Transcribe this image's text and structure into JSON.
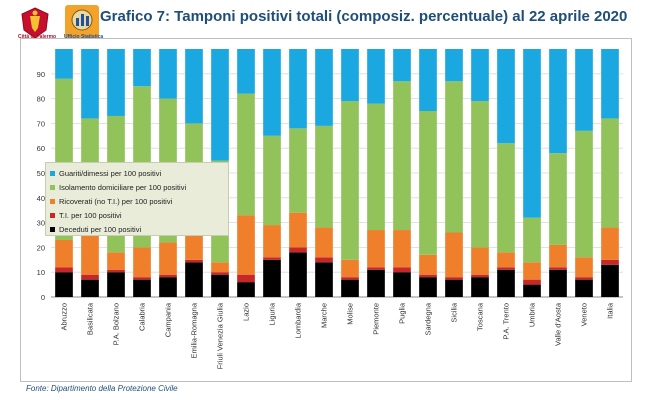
{
  "header": {
    "title": "Grafico 7: Tamponi positivi totali (composiz. percentuale) al 22 aprile 2020",
    "logo1_caption": "Città di Palermo",
    "logo2_caption": "Ufficio Statistica"
  },
  "footer": {
    "source": "Fonte: Dipartimento della Protezione Civile"
  },
  "colors": {
    "guariti": "#1ba8e0",
    "isolamento": "#92c35a",
    "ricoverati": "#f07f2c",
    "ti": "#c62828",
    "deceduti": "#000000",
    "grid": "#d9d9d9",
    "axis_text": "#333333"
  },
  "chart_data": {
    "type": "bar",
    "stacked": true,
    "title": "Grafico 7: Tamponi positivi totali (composiz. percentuale) al 22 aprile 2020",
    "xlabel": "",
    "ylabel": "",
    "ylim": [
      0,
      100
    ],
    "yticks": [
      0,
      10,
      20,
      30,
      40,
      50,
      60,
      70,
      80,
      90
    ],
    "grid": true,
    "legend_position": "left-middle",
    "categories": [
      "Abruzzo",
      "Basilicata",
      "P.A. Bolzano",
      "Calabria",
      "Campania",
      "Emilia-Romagna",
      "Friuli Venezia Giulia",
      "Lazio",
      "Liguria",
      "Lombardia",
      "Marche",
      "Molise",
      "Piemonte",
      "Puglia",
      "Sardegna",
      "Sicilia",
      "Toscana",
      "P.A. Trento",
      "Umbria",
      "Valle d'Aosta",
      "Veneto",
      "Italia"
    ],
    "series": [
      {
        "name": "Deceduti per 100 positivi",
        "color_key": "deceduti",
        "values": [
          10,
          7,
          10,
          7,
          8,
          14,
          9,
          6,
          15,
          18,
          14,
          7,
          11,
          10,
          8,
          7,
          8,
          11,
          5,
          11,
          7,
          13
        ]
      },
      {
        "name": "T.I. per 100 positivi",
        "color_key": "ti",
        "values": [
          2,
          2,
          1,
          1,
          1,
          1,
          1,
          3,
          1,
          2,
          2,
          1,
          1,
          2,
          1,
          1,
          1,
          1,
          2,
          1,
          1,
          2
        ]
      },
      {
        "name": "Ricoverati (no T.I.) per 100 positivi",
        "color_key": "ricoverati",
        "values": [
          11,
          18,
          7,
          12,
          13,
          13,
          4,
          24,
          13,
          14,
          12,
          7,
          15,
          15,
          8,
          18,
          11,
          6,
          7,
          9,
          8,
          13
        ]
      },
      {
        "name": "Isolamento domiciliare per 100 positivi",
        "color_key": "isolamento",
        "values": [
          65,
          45,
          55,
          65,
          58,
          42,
          41,
          49,
          36,
          34,
          41,
          64,
          51,
          60,
          58,
          61,
          59,
          44,
          18,
          37,
          51,
          44
        ]
      },
      {
        "name": "Guariti/dimessi per 100 positivi",
        "color_key": "guariti",
        "values": [
          12,
          28,
          27,
          15,
          20,
          30,
          45,
          18,
          35,
          32,
          31,
          21,
          22,
          13,
          25,
          13,
          21,
          38,
          68,
          42,
          33,
          28
        ]
      }
    ],
    "legend_order": [
      "Guariti/dimessi per 100 positivi",
      "Isolamento domiciliare per 100 positivi",
      "Ricoverati (no T.I.) per 100 positivi",
      "T.I. per 100 positivi",
      "Deceduti per 100 positivi"
    ]
  }
}
